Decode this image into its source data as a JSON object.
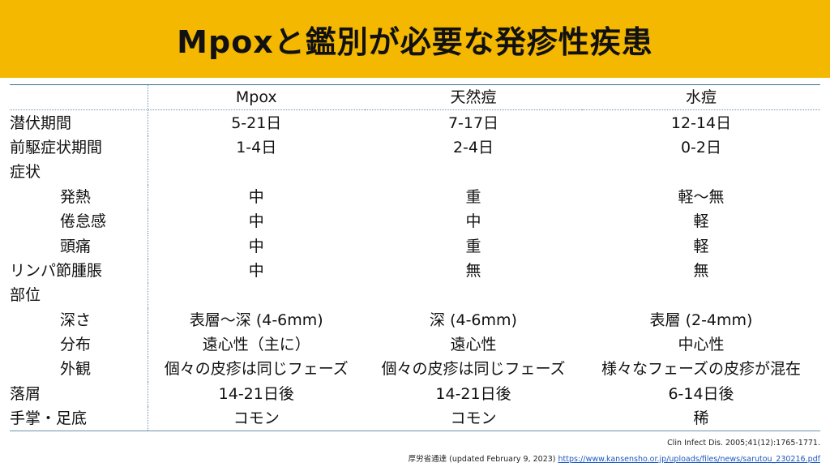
{
  "slide": {
    "title": "Mpoxと鑑別が必要な発疹性疾患"
  },
  "table": {
    "headers": [
      "",
      "Mpox",
      "天然痘",
      "水痘"
    ],
    "rows": [
      {
        "label": "潜伏期間",
        "indent": false,
        "values": [
          "5-21日",
          "7-17日",
          "12-14日"
        ]
      },
      {
        "label": "前駆症状期間",
        "indent": false,
        "values": [
          "1-4日",
          "2-4日",
          "0-2日"
        ]
      },
      {
        "label": "症状",
        "indent": false,
        "values": [
          "",
          "",
          ""
        ]
      },
      {
        "label": "発熱",
        "indent": true,
        "values": [
          "中",
          "重",
          "軽～無"
        ]
      },
      {
        "label": "倦怠感",
        "indent": true,
        "values": [
          "中",
          "中",
          "軽"
        ]
      },
      {
        "label": "頭痛",
        "indent": true,
        "values": [
          "中",
          "重",
          "軽"
        ]
      },
      {
        "label": "リンパ節腫脹",
        "indent": false,
        "values": [
          "中",
          "無",
          "無"
        ]
      },
      {
        "label": "部位",
        "indent": false,
        "values": [
          "",
          "",
          ""
        ]
      },
      {
        "label": "深さ",
        "indent": true,
        "values": [
          "表層～深 (4-6mm)",
          "深 (4-6mm)",
          "表層 (2-4mm)"
        ]
      },
      {
        "label": "分布",
        "indent": true,
        "values": [
          "遠心性（主に）",
          "遠心性",
          "中心性"
        ]
      },
      {
        "label": "外観",
        "indent": true,
        "values": [
          "個々の皮疹は同じフェーズ",
          "個々の皮疹は同じフェーズ",
          "様々なフェーズの皮疹が混在"
        ]
      },
      {
        "label": "落屑",
        "indent": false,
        "values": [
          "14-21日後",
          "14-21日後",
          "6-14日後"
        ]
      },
      {
        "label": "手掌・足底",
        "indent": false,
        "values": [
          "コモン",
          "コモン",
          "稀"
        ]
      }
    ]
  },
  "footer": {
    "ref1": "Clin Infect Dis. 2005;41(12):1765-1771.",
    "ref2_prefix": "厚労省通達 (updated February 9, 2023) ",
    "ref2_link": "https://www.kansensho.or.jp/uploads/files/news/sarutou_230216.pdf"
  }
}
